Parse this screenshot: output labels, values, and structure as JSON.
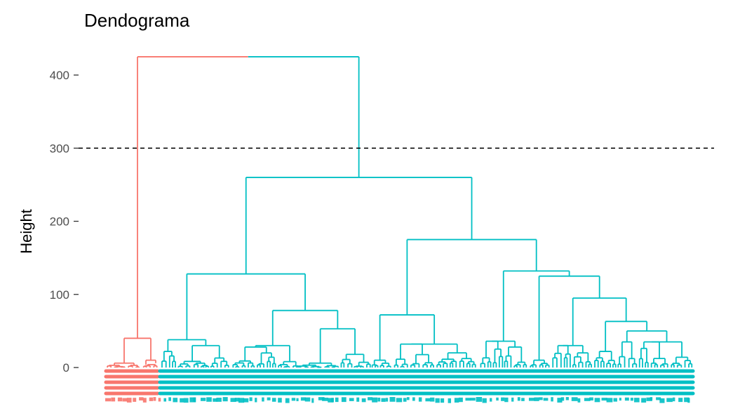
{
  "chart_data": {
    "type": "dendrogram",
    "title": "Dendograma",
    "xlabel": "",
    "ylabel": "Height",
    "ylim": [
      0,
      425
    ],
    "y_ticks": [
      0,
      100,
      200,
      300,
      400
    ],
    "cut_height": 300,
    "k_clusters": 2,
    "cluster_colors": [
      "#F8766D",
      "#00BFC4"
    ],
    "merges": [
      {
        "height": 425,
        "left": "cluster-1",
        "right": "cluster-2"
      },
      {
        "cluster": "cluster-1",
        "height": 40
      },
      {
        "cluster": "cluster-1",
        "height": 10
      },
      {
        "cluster": "cluster-2",
        "height": 260
      },
      {
        "cluster": "cluster-2",
        "height": 128
      },
      {
        "cluster": "cluster-2",
        "height": 175
      },
      {
        "cluster": "cluster-2",
        "height": 132
      },
      {
        "cluster": "cluster-2",
        "height": 125
      },
      {
        "cluster": "cluster-2",
        "height": 95
      },
      {
        "cluster": "cluster-2",
        "height": 78
      },
      {
        "cluster": "cluster-2",
        "height": 72
      },
      {
        "cluster": "cluster-2",
        "height": 63
      },
      {
        "cluster": "cluster-2",
        "height": 53
      },
      {
        "cluster": "cluster-2",
        "height": 50
      },
      {
        "cluster": "cluster-2",
        "height": 38
      }
    ]
  }
}
